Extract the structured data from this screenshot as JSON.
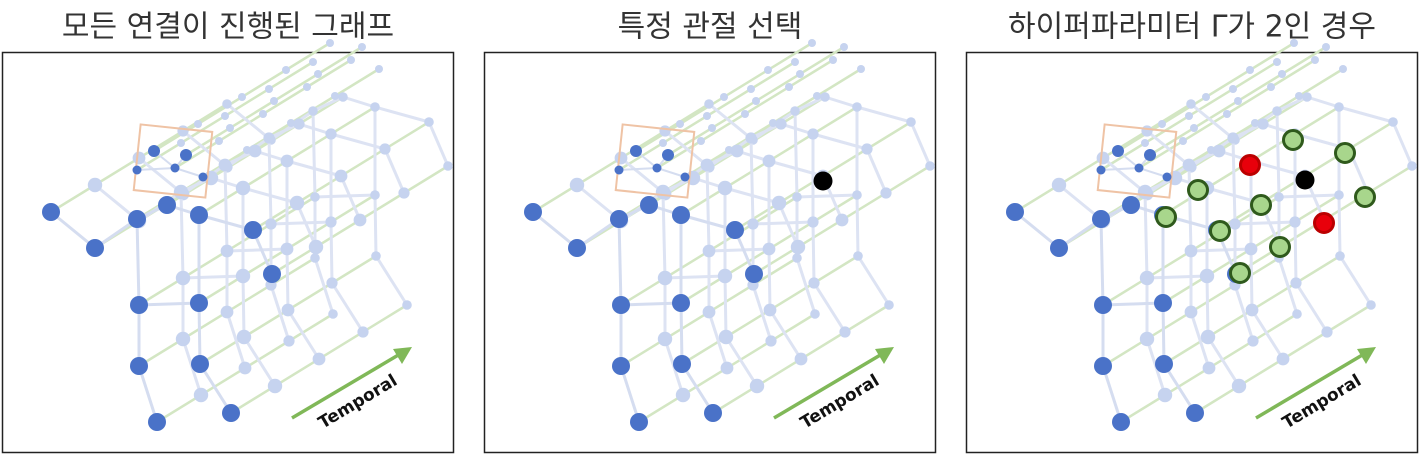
{
  "panels": [
    {
      "title": "모든 연결이 진행된 그래프",
      "axis_label": "Temporal"
    },
    {
      "title": "특정 관절 선택",
      "axis_label": "Temporal"
    },
    {
      "title": "하이퍼파라미터 Γ가 2인 경우",
      "axis_label": "Temporal"
    }
  ]
}
